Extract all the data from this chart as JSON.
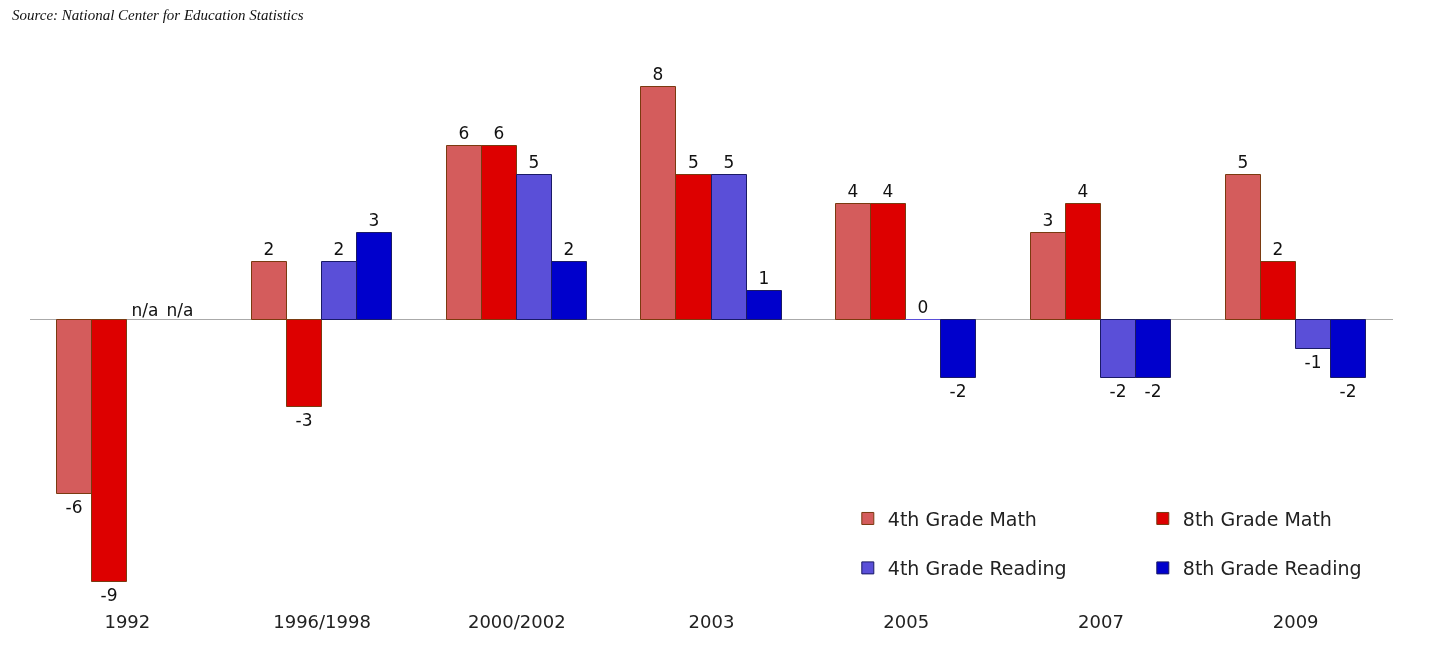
{
  "chart_data": {
    "type": "bar",
    "categories": [
      "1992",
      "1996/1998",
      "2000/2002",
      "2003",
      "2005",
      "2007",
      "2009"
    ],
    "series": [
      {
        "name": "4th Grade Math",
        "color": "#d45c5c",
        "values": [
          -6,
          2,
          6,
          8,
          4,
          3,
          5
        ],
        "value_labels": [
          "-6",
          "2",
          "6",
          "8",
          "4",
          "3",
          "5"
        ]
      },
      {
        "name": "8th Grade Math",
        "color": "#dd0000",
        "values": [
          -9,
          -3,
          6,
          5,
          4,
          4,
          2
        ],
        "value_labels": [
          "-9",
          "-3",
          "6",
          "5",
          "4",
          "4",
          "2"
        ]
      },
      {
        "name": "4th Grade Reading",
        "color": "#5a4fd8",
        "values": [
          null,
          2,
          5,
          5,
          0,
          -2,
          -1
        ],
        "value_labels": [
          "n/a",
          "2",
          "5",
          "5",
          "0",
          "-2",
          "-1"
        ]
      },
      {
        "name": "8th Grade Reading",
        "color": "#0000cc",
        "values": [
          null,
          3,
          2,
          1,
          -2,
          -2,
          -2
        ],
        "value_labels": [
          "n/a",
          "3",
          "2",
          "1",
          "-2",
          "-2",
          "-2"
        ]
      }
    ],
    "annotations": [
      "Source: National Center for Education Statistics"
    ],
    "legend": "bottom right"
  }
}
